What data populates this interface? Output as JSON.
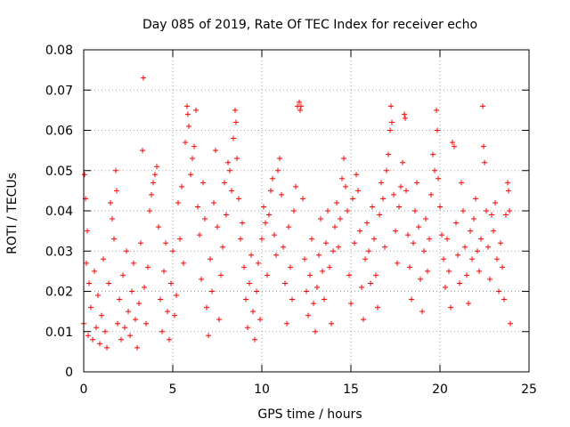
{
  "chart_data": {
    "type": "scatter",
    "title": "Day 085 of 2019, Rate Of TEC Index for receiver echo",
    "xlabel": "GPS time / hours",
    "ylabel": "ROTI / TECUs",
    "xlim": [
      0,
      25
    ],
    "ylim": [
      0,
      0.08
    ],
    "xticks": [
      0,
      5,
      10,
      15,
      20,
      25
    ],
    "xtick_labels": [
      "0",
      "5",
      "10",
      "15",
      "20",
      "25"
    ],
    "yticks": [
      0,
      0.01,
      0.02,
      0.03,
      0.04,
      0.05,
      0.06,
      0.07,
      0.08
    ],
    "ytick_labels": [
      "0",
      "0.01",
      "0.02",
      "0.03",
      "0.04",
      "0.05",
      "0.06",
      "0.07",
      "0.08"
    ],
    "grid": true,
    "marker": "+",
    "series": [
      {
        "color": "#ff0000",
        "points": [
          [
            0.0,
            0.012
          ],
          [
            0.05,
            0.049
          ],
          [
            0.1,
            0.043
          ],
          [
            0.15,
            0.027
          ],
          [
            0.2,
            0.035
          ],
          [
            0.25,
            0.009
          ],
          [
            0.3,
            0.022
          ],
          [
            0.4,
            0.016
          ],
          [
            0.5,
            0.008
          ],
          [
            0.6,
            0.025
          ],
          [
            0.7,
            0.011
          ],
          [
            0.8,
            0.019
          ],
          [
            0.9,
            0.007
          ],
          [
            1.0,
            0.014
          ],
          [
            1.1,
            0.028
          ],
          [
            1.2,
            0.01
          ],
          [
            1.3,
            0.006
          ],
          [
            1.4,
            0.022
          ],
          [
            1.5,
            0.042
          ],
          [
            1.6,
            0.038
          ],
          [
            1.7,
            0.033
          ],
          [
            1.8,
            0.05
          ],
          [
            1.85,
            0.045
          ],
          [
            1.9,
            0.012
          ],
          [
            2.0,
            0.018
          ],
          [
            2.1,
            0.008
          ],
          [
            2.2,
            0.024
          ],
          [
            2.3,
            0.011
          ],
          [
            2.4,
            0.03
          ],
          [
            2.5,
            0.015
          ],
          [
            2.6,
            0.009
          ],
          [
            2.7,
            0.02
          ],
          [
            2.8,
            0.027
          ],
          [
            2.9,
            0.013
          ],
          [
            3.0,
            0.006
          ],
          [
            3.1,
            0.017
          ],
          [
            3.2,
            0.032
          ],
          [
            3.3,
            0.055
          ],
          [
            3.35,
            0.073
          ],
          [
            3.4,
            0.021
          ],
          [
            3.5,
            0.012
          ],
          [
            3.6,
            0.026
          ],
          [
            3.7,
            0.04
          ],
          [
            3.8,
            0.044
          ],
          [
            3.9,
            0.047
          ],
          [
            4.0,
            0.049
          ],
          [
            4.1,
            0.051
          ],
          [
            4.2,
            0.036
          ],
          [
            4.3,
            0.018
          ],
          [
            4.4,
            0.01
          ],
          [
            4.5,
            0.025
          ],
          [
            4.6,
            0.032
          ],
          [
            4.7,
            0.015
          ],
          [
            4.8,
            0.008
          ],
          [
            4.9,
            0.022
          ],
          [
            5.0,
            0.03
          ],
          [
            5.1,
            0.014
          ],
          [
            5.2,
            0.019
          ],
          [
            5.3,
            0.042
          ],
          [
            5.4,
            0.033
          ],
          [
            5.5,
            0.046
          ],
          [
            5.6,
            0.027
          ],
          [
            5.7,
            0.057
          ],
          [
            5.8,
            0.066
          ],
          [
            5.85,
            0.064
          ],
          [
            5.9,
            0.061
          ],
          [
            6.0,
            0.049
          ],
          [
            6.1,
            0.053
          ],
          [
            6.2,
            0.056
          ],
          [
            6.3,
            0.065
          ],
          [
            6.4,
            0.041
          ],
          [
            6.5,
            0.034
          ],
          [
            6.6,
            0.023
          ],
          [
            6.7,
            0.047
          ],
          [
            6.8,
            0.038
          ],
          [
            6.9,
            0.016
          ],
          [
            7.0,
            0.009
          ],
          [
            7.1,
            0.028
          ],
          [
            7.2,
            0.02
          ],
          [
            7.3,
            0.042
          ],
          [
            7.4,
            0.055
          ],
          [
            7.5,
            0.036
          ],
          [
            7.6,
            0.013
          ],
          [
            7.7,
            0.024
          ],
          [
            7.8,
            0.031
          ],
          [
            7.9,
            0.047
          ],
          [
            8.0,
            0.039
          ],
          [
            8.1,
            0.052
          ],
          [
            8.2,
            0.05
          ],
          [
            8.3,
            0.045
          ],
          [
            8.4,
            0.058
          ],
          [
            8.5,
            0.065
          ],
          [
            8.55,
            0.062
          ],
          [
            8.6,
            0.053
          ],
          [
            8.7,
            0.043
          ],
          [
            8.8,
            0.033
          ],
          [
            8.9,
            0.037
          ],
          [
            9.0,
            0.026
          ],
          [
            9.1,
            0.018
          ],
          [
            9.2,
            0.011
          ],
          [
            9.3,
            0.022
          ],
          [
            9.4,
            0.029
          ],
          [
            9.5,
            0.015
          ],
          [
            9.6,
            0.008
          ],
          [
            9.7,
            0.02
          ],
          [
            9.8,
            0.027
          ],
          [
            9.9,
            0.013
          ],
          [
            10.0,
            0.033
          ],
          [
            10.1,
            0.041
          ],
          [
            10.2,
            0.037
          ],
          [
            10.3,
            0.024
          ],
          [
            10.4,
            0.039
          ],
          [
            10.5,
            0.045
          ],
          [
            10.6,
            0.048
          ],
          [
            10.7,
            0.034
          ],
          [
            10.8,
            0.029
          ],
          [
            10.9,
            0.05
          ],
          [
            11.0,
            0.053
          ],
          [
            11.1,
            0.044
          ],
          [
            11.2,
            0.031
          ],
          [
            11.3,
            0.022
          ],
          [
            11.4,
            0.012
          ],
          [
            11.5,
            0.036
          ],
          [
            11.6,
            0.026
          ],
          [
            11.7,
            0.018
          ],
          [
            11.8,
            0.04
          ],
          [
            11.9,
            0.046
          ],
          [
            12.0,
            0.066
          ],
          [
            12.1,
            0.067
          ],
          [
            12.15,
            0.065
          ],
          [
            12.2,
            0.066
          ],
          [
            12.3,
            0.043
          ],
          [
            12.4,
            0.028
          ],
          [
            12.5,
            0.02
          ],
          [
            12.6,
            0.014
          ],
          [
            12.7,
            0.024
          ],
          [
            12.8,
            0.033
          ],
          [
            12.9,
            0.017
          ],
          [
            13.0,
            0.01
          ],
          [
            13.1,
            0.021
          ],
          [
            13.2,
            0.029
          ],
          [
            13.3,
            0.038
          ],
          [
            13.4,
            0.025
          ],
          [
            13.5,
            0.018
          ],
          [
            13.6,
            0.032
          ],
          [
            13.7,
            0.04
          ],
          [
            13.8,
            0.026
          ],
          [
            13.9,
            0.012
          ],
          [
            14.0,
            0.03
          ],
          [
            14.1,
            0.036
          ],
          [
            14.2,
            0.042
          ],
          [
            14.3,
            0.031
          ],
          [
            14.4,
            0.038
          ],
          [
            14.5,
            0.048
          ],
          [
            14.6,
            0.053
          ],
          [
            14.7,
            0.046
          ],
          [
            14.8,
            0.04
          ],
          [
            14.9,
            0.024
          ],
          [
            15.0,
            0.017
          ],
          [
            15.1,
            0.043
          ],
          [
            15.2,
            0.032
          ],
          [
            15.3,
            0.049
          ],
          [
            15.4,
            0.045
          ],
          [
            15.5,
            0.035
          ],
          [
            15.6,
            0.021
          ],
          [
            15.7,
            0.013
          ],
          [
            15.8,
            0.028
          ],
          [
            15.9,
            0.037
          ],
          [
            16.0,
            0.03
          ],
          [
            16.1,
            0.022
          ],
          [
            16.2,
            0.041
          ],
          [
            16.3,
            0.033
          ],
          [
            16.4,
            0.024
          ],
          [
            16.5,
            0.016
          ],
          [
            16.6,
            0.039
          ],
          [
            16.7,
            0.047
          ],
          [
            16.8,
            0.043
          ],
          [
            16.9,
            0.031
          ],
          [
            17.0,
            0.05
          ],
          [
            17.1,
            0.054
          ],
          [
            17.2,
            0.06
          ],
          [
            17.25,
            0.066
          ],
          [
            17.3,
            0.062
          ],
          [
            17.4,
            0.044
          ],
          [
            17.5,
            0.035
          ],
          [
            17.6,
            0.027
          ],
          [
            17.7,
            0.041
          ],
          [
            17.8,
            0.046
          ],
          [
            17.9,
            0.052
          ],
          [
            18.0,
            0.064
          ],
          [
            18.05,
            0.063
          ],
          [
            18.1,
            0.045
          ],
          [
            18.2,
            0.034
          ],
          [
            18.3,
            0.026
          ],
          [
            18.4,
            0.018
          ],
          [
            18.5,
            0.032
          ],
          [
            18.6,
            0.04
          ],
          [
            18.7,
            0.047
          ],
          [
            18.8,
            0.036
          ],
          [
            18.9,
            0.023
          ],
          [
            19.0,
            0.015
          ],
          [
            19.1,
            0.03
          ],
          [
            19.2,
            0.038
          ],
          [
            19.3,
            0.025
          ],
          [
            19.4,
            0.033
          ],
          [
            19.5,
            0.044
          ],
          [
            19.6,
            0.054
          ],
          [
            19.7,
            0.05
          ],
          [
            19.8,
            0.065
          ],
          [
            19.85,
            0.06
          ],
          [
            19.9,
            0.048
          ],
          [
            20.0,
            0.041
          ],
          [
            20.1,
            0.034
          ],
          [
            20.2,
            0.028
          ],
          [
            20.3,
            0.021
          ],
          [
            20.4,
            0.033
          ],
          [
            20.5,
            0.025
          ],
          [
            20.6,
            0.016
          ],
          [
            20.7,
            0.057
          ],
          [
            20.8,
            0.056
          ],
          [
            20.9,
            0.037
          ],
          [
            21.0,
            0.029
          ],
          [
            21.1,
            0.022
          ],
          [
            21.2,
            0.047
          ],
          [
            21.3,
            0.04
          ],
          [
            21.4,
            0.031
          ],
          [
            21.5,
            0.024
          ],
          [
            21.6,
            0.017
          ],
          [
            21.7,
            0.035
          ],
          [
            21.8,
            0.028
          ],
          [
            21.9,
            0.038
          ],
          [
            22.0,
            0.043
          ],
          [
            22.1,
            0.03
          ],
          [
            22.2,
            0.025
          ],
          [
            22.3,
            0.033
          ],
          [
            22.4,
            0.066
          ],
          [
            22.45,
            0.056
          ],
          [
            22.5,
            0.052
          ],
          [
            22.6,
            0.04
          ],
          [
            22.7,
            0.031
          ],
          [
            22.8,
            0.023
          ],
          [
            22.9,
            0.039
          ],
          [
            23.0,
            0.035
          ],
          [
            23.1,
            0.042
          ],
          [
            23.2,
            0.028
          ],
          [
            23.3,
            0.02
          ],
          [
            23.4,
            0.032
          ],
          [
            23.5,
            0.026
          ],
          [
            23.6,
            0.018
          ],
          [
            23.7,
            0.039
          ],
          [
            23.8,
            0.047
          ],
          [
            23.85,
            0.045
          ],
          [
            23.9,
            0.04
          ],
          [
            23.95,
            0.012
          ]
        ]
      }
    ]
  }
}
